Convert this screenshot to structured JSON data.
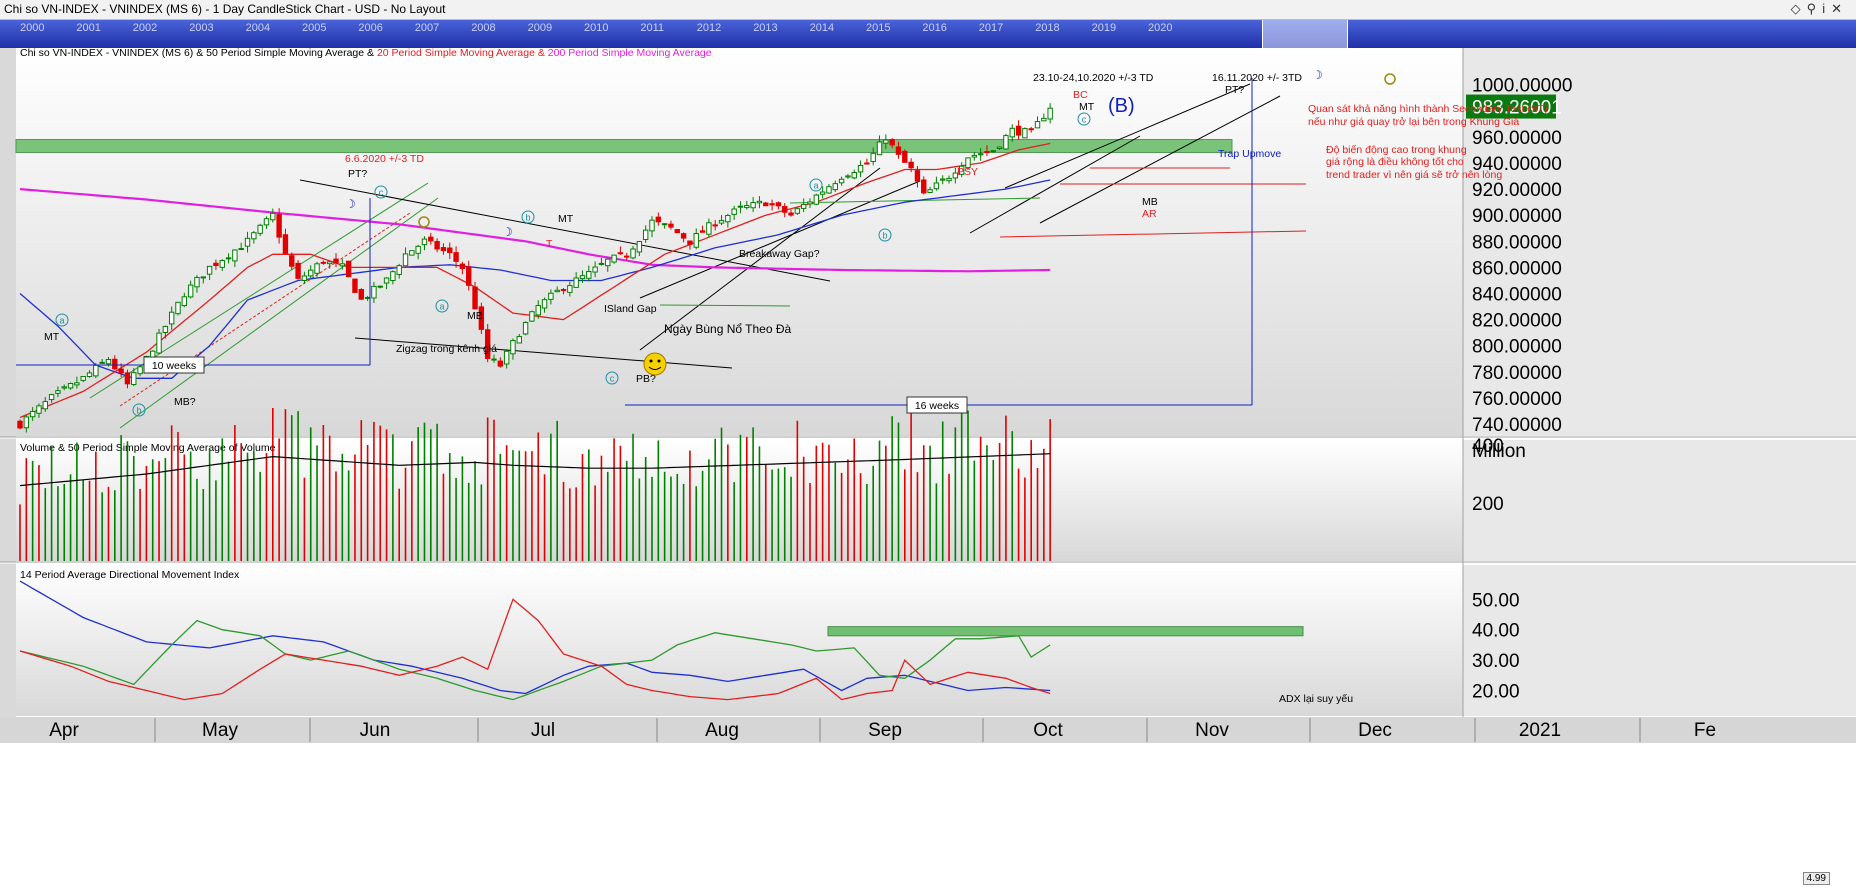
{
  "window": {
    "title": "Chi so VN-INDEX - VNINDEX (MS 6) - 1 Day CandleStick Chart - USD - No Layout",
    "icons": [
      "diamond-icon",
      "pin-icon",
      "info-icon",
      "close-icon"
    ],
    "corner_readout": "4.99"
  },
  "year_navigator": {
    "years": [
      "2000",
      "2001",
      "2002",
      "2003",
      "2004",
      "2005",
      "2006",
      "2007",
      "2008",
      "2009",
      "2010",
      "2011",
      "2012",
      "2013",
      "2014",
      "2015",
      "2016",
      "2017",
      "2018",
      "2019",
      "2020"
    ]
  },
  "price_panel": {
    "title_parts": [
      {
        "text": "Chi so VN-INDEX - VNINDEX (MS 6) & 50 Period Simple Moving Average & ",
        "color": "#000000"
      },
      {
        "text": "20 Period Simple Moving Average & ",
        "color": "#e02020"
      },
      {
        "text": "200 Period Simple Moving Average",
        "color": "#e020e0"
      }
    ],
    "last_price": "983.26001",
    "y_ticks": [
      "740.00000",
      "760.00000",
      "780.00000",
      "800.00000",
      "820.00000",
      "840.00000",
      "860.00000",
      "880.00000",
      "900.00000",
      "920.00000",
      "940.00000",
      "960.00000",
      "980.00000",
      "1000.00000"
    ]
  },
  "volume_panel": {
    "title": "Volume & 50 Period Simple Moving Average of Volume",
    "unit": "Million",
    "y_ticks": [
      "200",
      "400"
    ]
  },
  "adx_panel": {
    "title": "14 Period Average Directional Movement Index",
    "y_ticks": [
      "20.00",
      "30.00",
      "40.00",
      "50.00"
    ]
  },
  "x_axis": {
    "labels": [
      "Apr",
      "May",
      "Jun",
      "Jul",
      "Aug",
      "Sep",
      "Oct",
      "Nov",
      "Dec",
      "2021",
      "Fe"
    ]
  },
  "annotations": {
    "ms_6_6": "6.6.2020 +/-3 TD",
    "pt1": "PT?",
    "mt_left": "MT",
    "mb_q": "MB?",
    "ten_weeks": "10 weeks",
    "zigzag": "Zigzag trong kênh giá",
    "mb_jun": "MB",
    "mt_jul": "MT",
    "t_jul": "T",
    "island_gap": "ISland Gap",
    "breakout_day": "Ngày Bùng Nổ Theo Đà",
    "pb_q": "PB?",
    "breakaway_gap": "Breakaway Gap?",
    "sixteen_weeks": "16 weeks",
    "psy": "PSY",
    "bc": "BC",
    "mt_oct": "MT",
    "wave_b": "(B)",
    "date_oct": "23.10-24,10.2020  +/-3 TD",
    "date_nov": "16.11.2020 +/- 3TD",
    "pt2": "PT?",
    "trap_upmove": "Trap Upmove",
    "mb_oct": "MB",
    "ar": "AR",
    "st_note_1": "Quan sát khả năng hình thành Secondary Test (ST)",
    "st_note_2": "nếu như giá quay trở lại bên trong Khung Giá",
    "vol_note_1": "Độ biến động cao trong khung",
    "vol_note_2": "giá rộng là điều không tốt cho",
    "vol_note_3": "trend trader vì nên giá sẽ trở nên lòng",
    "adx_note": "ADX lại suy yếu",
    "wave_a1": "a",
    "wave_b1": "b",
    "wave_c1": "c",
    "wave_a2": "a",
    "wave_b2": "b",
    "wave_c2": "c",
    "wave_a3": "a",
    "wave_b3": "b",
    "wave_c3": "c"
  },
  "colors": {
    "up_candle": "#008000",
    "down_candle": "#e00000",
    "sma20": "#e02020",
    "sma50": "#2030d0",
    "sma200": "#e020e0",
    "adx": "#2030d0",
    "plus_di": "#2e9a2e",
    "minus_di": "#e02020",
    "annotation_red": "#e02020",
    "annotation_blue": "#1020c0",
    "zone_green": "#5cb85c",
    "last_price_bg": "#0a7a10"
  },
  "chart_data": {
    "type": "candlestick",
    "title": "Chi so VN-INDEX - VNINDEX (MS 6) & 50 Period Simple Moving Average & 20 Period Simple Moving Average & 200 Period Simple Moving Average",
    "x_months": [
      "Apr",
      "May",
      "Jun",
      "Jul",
      "Aug",
      "Sep",
      "Oct",
      "Nov",
      "Dec",
      "2021",
      "Fe"
    ],
    "ylim": [
      725,
      1010
    ],
    "last_close": 983.26,
    "close_anchors": [
      [
        0,
        740
      ],
      [
        5,
        760
      ],
      [
        10,
        775
      ],
      [
        14,
        790
      ],
      [
        17,
        770
      ],
      [
        20,
        790
      ],
      [
        26,
        840
      ],
      [
        30,
        860
      ],
      [
        36,
        880
      ],
      [
        40,
        900
      ],
      [
        42,
        870
      ],
      [
        44,
        850
      ],
      [
        48,
        865
      ],
      [
        51,
        860
      ],
      [
        54,
        835
      ],
      [
        58,
        850
      ],
      [
        61,
        870
      ],
      [
        64,
        880
      ],
      [
        68,
        870
      ],
      [
        70,
        860
      ],
      [
        72,
        830
      ],
      [
        74,
        790
      ],
      [
        76,
        785
      ],
      [
        79,
        810
      ],
      [
        82,
        830
      ],
      [
        86,
        845
      ],
      [
        90,
        855
      ],
      [
        93,
        865
      ],
      [
        96,
        870
      ],
      [
        100,
        895
      ],
      [
        103,
        890
      ],
      [
        106,
        880
      ],
      [
        110,
        895
      ],
      [
        114,
        905
      ],
      [
        118,
        910
      ],
      [
        122,
        900
      ],
      [
        126,
        915
      ],
      [
        130,
        930
      ],
      [
        134,
        940
      ],
      [
        137,
        960
      ],
      [
        139,
        945
      ],
      [
        141,
        935
      ],
      [
        143,
        915
      ],
      [
        147,
        930
      ],
      [
        150,
        945
      ],
      [
        154,
        950
      ],
      [
        157,
        965
      ],
      [
        160,
        963
      ],
      [
        163,
        983.26
      ]
    ],
    "sma20_anchors": [
      [
        0,
        745
      ],
      [
        10,
        765
      ],
      [
        20,
        795
      ],
      [
        30,
        835
      ],
      [
        36,
        860
      ],
      [
        40,
        870
      ],
      [
        46,
        870
      ],
      [
        52,
        860
      ],
      [
        60,
        860
      ],
      [
        66,
        860
      ],
      [
        72,
        845
      ],
      [
        78,
        825
      ],
      [
        86,
        820
      ],
      [
        94,
        845
      ],
      [
        102,
        870
      ],
      [
        110,
        885
      ],
      [
        118,
        900
      ],
      [
        126,
        910
      ],
      [
        134,
        925
      ],
      [
        140,
        935
      ],
      [
        145,
        935
      ],
      [
        152,
        940
      ],
      [
        158,
        950
      ],
      [
        163,
        955
      ]
    ],
    "sma50_anchors": [
      [
        0,
        840
      ],
      [
        6,
        815
      ],
      [
        12,
        785
      ],
      [
        18,
        775
      ],
      [
        24,
        775
      ],
      [
        30,
        800
      ],
      [
        36,
        835
      ],
      [
        44,
        850
      ],
      [
        52,
        855
      ],
      [
        60,
        860
      ],
      [
        68,
        862
      ],
      [
        76,
        858
      ],
      [
        84,
        850
      ],
      [
        92,
        850
      ],
      [
        100,
        860
      ],
      [
        110,
        875
      ],
      [
        120,
        885
      ],
      [
        130,
        900
      ],
      [
        140,
        910
      ],
      [
        148,
        915
      ],
      [
        156,
        920
      ],
      [
        163,
        927
      ]
    ],
    "sma200_anchors": [
      [
        0,
        920
      ],
      [
        20,
        912
      ],
      [
        40,
        902
      ],
      [
        60,
        893
      ],
      [
        80,
        880
      ],
      [
        90,
        870
      ],
      [
        100,
        862
      ],
      [
        110,
        860
      ],
      [
        130,
        858
      ],
      [
        150,
        857
      ],
      [
        163,
        858
      ]
    ],
    "volume_anchors": [
      [
        0,
        260
      ],
      [
        20,
        300
      ],
      [
        40,
        360
      ],
      [
        60,
        330
      ],
      [
        72,
        340
      ],
      [
        78,
        330
      ],
      [
        90,
        320
      ],
      [
        100,
        320
      ],
      [
        120,
        335
      ],
      [
        140,
        350
      ],
      [
        163,
        370
      ]
    ],
    "adx_anchors": [
      [
        0,
        56
      ],
      [
        10,
        44
      ],
      [
        20,
        36
      ],
      [
        30,
        34
      ],
      [
        40,
        38
      ],
      [
        48,
        36
      ],
      [
        56,
        30
      ],
      [
        62,
        28
      ],
      [
        70,
        24
      ],
      [
        76,
        20
      ],
      [
        80,
        19
      ],
      [
        86,
        25
      ],
      [
        90,
        28
      ],
      [
        96,
        29
      ],
      [
        100,
        26
      ],
      [
        106,
        25
      ],
      [
        112,
        23
      ],
      [
        118,
        25
      ],
      [
        124,
        27
      ],
      [
        130,
        20
      ],
      [
        134,
        24
      ],
      [
        140,
        25
      ],
      [
        146,
        22
      ],
      [
        150,
        20
      ],
      [
        156,
        21
      ],
      [
        163,
        20
      ]
    ],
    "plus_di_anchors": [
      [
        0,
        33
      ],
      [
        10,
        28
      ],
      [
        18,
        22
      ],
      [
        24,
        35
      ],
      [
        28,
        43
      ],
      [
        32,
        40
      ],
      [
        38,
        38
      ],
      [
        42,
        32
      ],
      [
        46,
        30
      ],
      [
        52,
        33
      ],
      [
        60,
        27
      ],
      [
        66,
        24
      ],
      [
        72,
        20
      ],
      [
        78,
        17
      ],
      [
        82,
        20
      ],
      [
        86,
        23
      ],
      [
        92,
        28
      ],
      [
        100,
        30
      ],
      [
        104,
        35
      ],
      [
        110,
        39
      ],
      [
        116,
        37
      ],
      [
        122,
        35
      ],
      [
        126,
        33
      ],
      [
        132,
        34
      ],
      [
        136,
        25
      ],
      [
        140,
        24
      ],
      [
        144,
        30
      ],
      [
        148,
        37
      ],
      [
        152,
        37
      ],
      [
        158,
        38
      ],
      [
        160,
        31
      ],
      [
        163,
        35
      ]
    ],
    "minus_di_anchors": [
      [
        0,
        33
      ],
      [
        8,
        28
      ],
      [
        14,
        23
      ],
      [
        20,
        20
      ],
      [
        26,
        17
      ],
      [
        32,
        19
      ],
      [
        38,
        27
      ],
      [
        42,
        32
      ],
      [
        48,
        30
      ],
      [
        54,
        28
      ],
      [
        60,
        25
      ],
      [
        66,
        28
      ],
      [
        70,
        31
      ],
      [
        74,
        27
      ],
      [
        78,
        50
      ],
      [
        82,
        43
      ],
      [
        86,
        32
      ],
      [
        92,
        28
      ],
      [
        96,
        22
      ],
      [
        100,
        20
      ],
      [
        106,
        18
      ],
      [
        112,
        17
      ],
      [
        120,
        19
      ],
      [
        126,
        24
      ],
      [
        130,
        17
      ],
      [
        134,
        19
      ],
      [
        138,
        20
      ],
      [
        140,
        30
      ],
      [
        144,
        22
      ],
      [
        150,
        26
      ],
      [
        156,
        24
      ],
      [
        160,
        21
      ],
      [
        163,
        19
      ]
    ],
    "adx_ylim": [
      13,
      57
    ],
    "volume_ylim": [
      0,
      560
    ],
    "levels": {
      "resistance_zone": [
        948,
        958
      ],
      "adx_zone": [
        38,
        41
      ]
    }
  }
}
